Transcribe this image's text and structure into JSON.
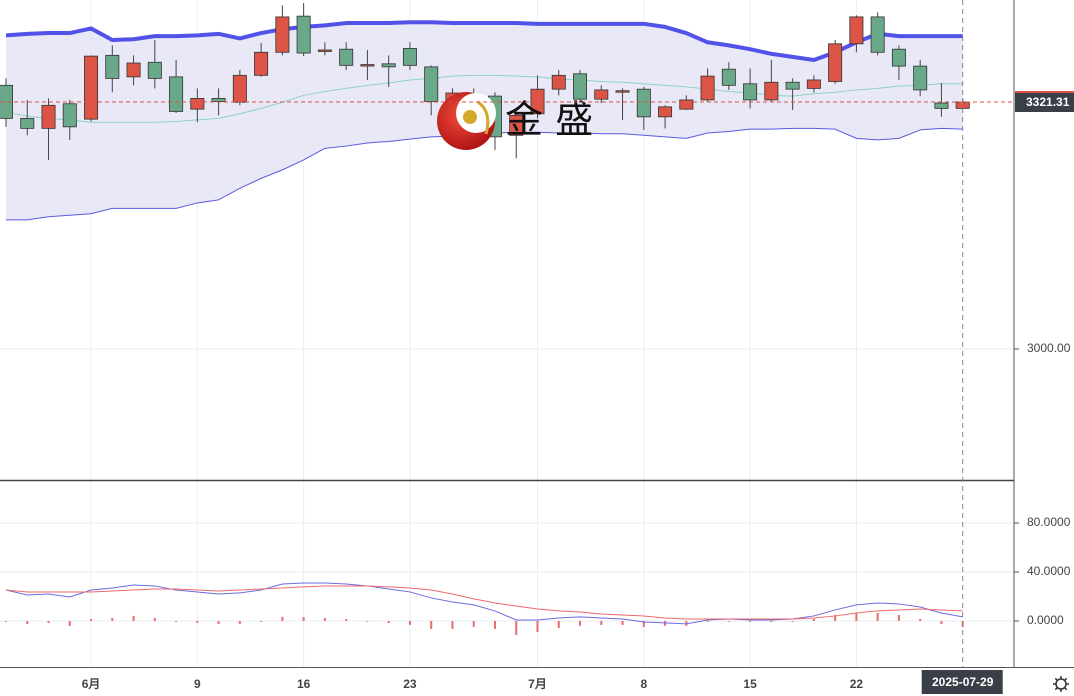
{
  "chart_data": [
    {
      "type": "candlestick",
      "watermark": "金 盛",
      "categories": [
        null,
        null,
        null,
        null,
        "6月",
        null,
        null,
        null,
        null,
        "9",
        null,
        null,
        null,
        null,
        "16",
        null,
        null,
        null,
        null,
        "23",
        null,
        null,
        null,
        null,
        null,
        "7月",
        null,
        null,
        null,
        null,
        "8",
        null,
        null,
        null,
        null,
        "15",
        null,
        null,
        null,
        null,
        "22",
        null,
        null,
        null,
        null,
        "2025-07-29"
      ],
      "open": [
        3343,
        3300,
        3287,
        3319,
        3299,
        3382,
        3354,
        3373,
        3354,
        3312,
        3326,
        3321,
        3356,
        3386,
        3433,
        3388,
        3390,
        3369,
        3371,
        3391,
        3367,
        3320,
        3332,
        3329,
        3278,
        3306,
        3338,
        3358,
        3325,
        3335,
        3338,
        3302,
        3312,
        3324,
        3364,
        3345,
        3324,
        3347,
        3339,
        3348,
        3397,
        3432,
        3390,
        3368,
        3320,
        3313
      ],
      "high": [
        3352,
        3324,
        3326,
        3324,
        3382,
        3395,
        3382,
        3402,
        3376,
        3339,
        3339,
        3363,
        3398,
        3447,
        3450,
        3399,
        3399,
        3389,
        3382,
        3399,
        3369,
        3339,
        3339,
        3334,
        3311,
        3356,
        3363,
        3363,
        3343,
        3339,
        3341,
        3317,
        3330,
        3365,
        3373,
        3365,
        3376,
        3352,
        3356,
        3402,
        3434,
        3438,
        3395,
        3376,
        3346,
        3326
      ],
      "low": [
        3289,
        3278,
        3246,
        3272,
        3296,
        3334,
        3343,
        3339,
        3307,
        3295,
        3304,
        3317,
        3354,
        3382,
        3381,
        3382,
        3363,
        3350,
        3341,
        3363,
        3304,
        3304,
        3298,
        3259,
        3248,
        3300,
        3330,
        3320,
        3320,
        3298,
        3285,
        3287,
        3311,
        3322,
        3337,
        3313,
        3321,
        3311,
        3334,
        3345,
        3386,
        3382,
        3350,
        3329,
        3302,
        3311
      ],
      "close": [
        3300,
        3287,
        3317,
        3289,
        3381,
        3352,
        3372,
        3352,
        3309,
        3326,
        3322,
        3356,
        3386,
        3432,
        3385,
        3389,
        3369,
        3370,
        3367,
        3369,
        3322,
        3333,
        3304,
        3276,
        3304,
        3338,
        3356,
        3325,
        3337,
        3336,
        3302,
        3315,
        3324,
        3355,
        3343,
        3324,
        3347,
        3338,
        3350,
        3397,
        3432,
        3386,
        3368,
        3337,
        3313,
        3321.31
      ],
      "up_color": "#dc5446",
      "down_color": "#6aa88a",
      "series": [
        {
          "color": "#5252e8",
          "line_width": 4,
          "values": [
            3408,
            3410,
            3411,
            3411,
            3417,
            3402,
            3403,
            3407,
            3407,
            3408,
            3410,
            3404,
            3411,
            3416,
            3419,
            3421,
            3424,
            3424,
            3424,
            3425,
            3425,
            3424,
            3424,
            3424,
            3424,
            3423,
            3423,
            3423,
            3423,
            3423,
            3423,
            3419,
            3411,
            3399,
            3395,
            3390,
            3384,
            3380,
            3376,
            3386,
            3399,
            3410,
            3407,
            3407,
            3407,
            3407
          ]
        },
        {
          "color": "#8fd3c0",
          "line_width": 1,
          "values": [
            3308,
            3303,
            3300,
            3298,
            3295,
            3295,
            3295,
            3295,
            3296,
            3298,
            3300,
            3306,
            3313,
            3321,
            3330,
            3335,
            3339,
            3343,
            3346,
            3350,
            3352,
            3355,
            3356,
            3356,
            3355,
            3354,
            3351,
            3350,
            3348,
            3347,
            3345,
            3343,
            3341,
            3338,
            3335,
            3333,
            3330,
            3329,
            3332,
            3334,
            3337,
            3339,
            3342,
            3343,
            3345,
            3345
          ]
        },
        {
          "color": "#5a5ae0",
          "line_width": 1,
          "values": [
            3168,
            3168,
            3172,
            3174,
            3176,
            3183,
            3183,
            3183,
            3183,
            3190,
            3194,
            3209,
            3222,
            3233,
            3246,
            3261,
            3264,
            3268,
            3270,
            3273,
            3276,
            3277,
            3280,
            3281,
            3282,
            3282,
            3281,
            3281,
            3280,
            3280,
            3278,
            3276,
            3274,
            3281,
            3283,
            3286,
            3286,
            3287,
            3287,
            3286,
            3274,
            3272,
            3274,
            3285,
            3287,
            3286
          ]
        }
      ],
      "band_fill": "#e4e4f4",
      "last_price": 3321.31,
      "ylim": [
        2829.6,
        3454
      ],
      "yticks": [
        {
          "value": 3000,
          "label": "3000.00"
        }
      ],
      "grid": true
    },
    {
      "type": "macd",
      "series": [
        {
          "color": "#6b6be0",
          "values": [
            25.3,
            21.2,
            22.0,
            19.6,
            25.3,
            26.9,
            29.4,
            28.6,
            25.3,
            23.7,
            22.0,
            22.9,
            25.3,
            30.2,
            31.0,
            31.0,
            30.2,
            28.6,
            26.1,
            23.7,
            18.8,
            15.5,
            13.1,
            8.2,
            0.8,
            0.8,
            2.4,
            3.3,
            2.4,
            1.6,
            -0.8,
            -1.6,
            -2.4,
            0.8,
            1.6,
            0.8,
            0.8,
            1.6,
            4.1,
            9.0,
            13.1,
            14.7,
            13.9,
            11.4,
            6.5,
            3.3
          ]
        },
        {
          "color": "#ef6a6a",
          "values": [
            25.3,
            23.7,
            23.7,
            23.7,
            23.7,
            24.5,
            25.3,
            26.1,
            26.1,
            25.3,
            24.5,
            25.3,
            26.1,
            26.9,
            27.8,
            28.6,
            28.6,
            28.6,
            27.8,
            26.9,
            25.3,
            22.0,
            18.0,
            14.7,
            12.2,
            9.8,
            8.2,
            7.3,
            5.7,
            4.9,
            4.1,
            2.4,
            1.6,
            1.6,
            1.6,
            1.6,
            1.6,
            1.6,
            2.4,
            4.1,
            6.5,
            8.2,
            9.0,
            9.8,
            9.0,
            8.2
          ]
        }
      ],
      "histogram": {
        "color": "#ec6b6b",
        "values": [
          0,
          -2.5,
          -1.7,
          -4.1,
          1.6,
          2.4,
          4.1,
          2.5,
          -0.8,
          -1.6,
          -2.5,
          -2.4,
          -0.8,
          3.3,
          3.2,
          2.4,
          1.6,
          0,
          -1.7,
          -3.2,
          -6.5,
          -6.5,
          -4.9,
          -6.5,
          -11.4,
          -9.0,
          -5.8,
          -4.0,
          -3.3,
          -3.3,
          -4.9,
          -4.0,
          -4.0,
          -0.8,
          0,
          -0.8,
          -0.8,
          0,
          1.7,
          4.9,
          6.6,
          6.5,
          4.9,
          1.6,
          -2.5,
          -4.9
        ]
      },
      "ylim": [
        -37.6,
        114.3
      ],
      "yticks": [
        {
          "value": 80,
          "label": "80.0000"
        },
        {
          "value": 40,
          "label": "40.0000"
        },
        {
          "value": 0,
          "label": "0.0000"
        }
      ],
      "grid": true
    }
  ]
}
